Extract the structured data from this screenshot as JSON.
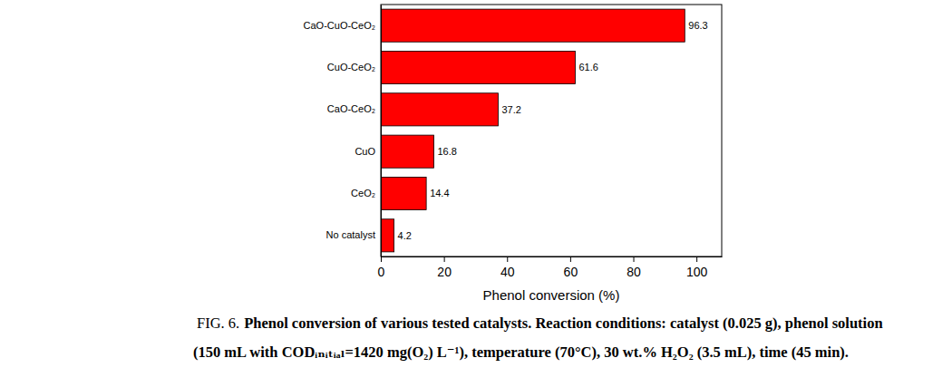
{
  "chart_data": {
    "type": "bar",
    "orientation": "horizontal",
    "categories": [
      "CaO-CuO-CeO₂",
      "CuO-CeO₂",
      "CaO-CeO₂",
      "CuO",
      "CeO₂",
      "No catalyst"
    ],
    "values": [
      96.3,
      61.6,
      37.2,
      16.8,
      14.4,
      4.2
    ],
    "color": "#ff0000",
    "data_labels": true,
    "xlim": [
      0,
      108
    ],
    "xticks": [
      0,
      20,
      40,
      60,
      80,
      100
    ],
    "x_label": "Phenol conversion (%)",
    "caption_label": "FIG. 6.",
    "caption": [
      "Phenol conversion of various tested catalysts. Reaction conditions: catalyst (0.025 g), phenol solution",
      "(150 mL with CODᵢₙᵢₜᵢₐₗ=1420 mg(O₂) L⁻¹), temperature (70°C), 30 wt.% H₂O₂ (3.5 mL), time (45 min)."
    ]
  }
}
